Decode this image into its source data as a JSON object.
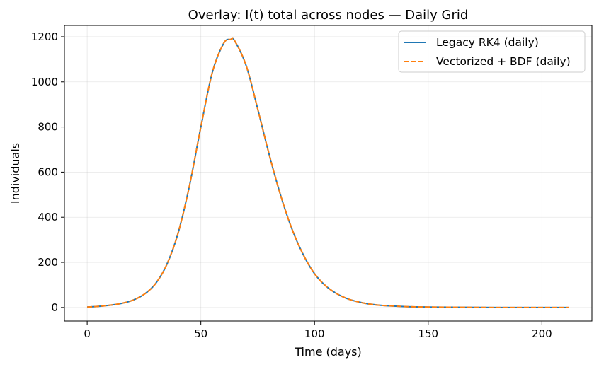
{
  "chart_data": {
    "type": "line",
    "title": "Overlay: I(t) total across nodes — Daily Grid",
    "xlabel": "Time (days)",
    "ylabel": "Individuals",
    "xlim": [
      -10,
      222
    ],
    "ylim": [
      -60,
      1250
    ],
    "xticks": [
      0,
      50,
      100,
      150,
      200
    ],
    "yticks": [
      0,
      200,
      400,
      600,
      800,
      1000,
      1200
    ],
    "grid": true,
    "legend_position": "top-right",
    "series": [
      {
        "name": "Legacy RK4 (daily)",
        "color": "#1f77b4",
        "style": "solid",
        "x": [
          0,
          5,
          10,
          15,
          20,
          25,
          30,
          35,
          40,
          45,
          50,
          55,
          60,
          63,
          65,
          70,
          75,
          80,
          85,
          90,
          95,
          100,
          105,
          110,
          115,
          120,
          125,
          130,
          140,
          150,
          160,
          180,
          200,
          212
        ],
        "y": [
          2,
          5,
          10,
          18,
          32,
          58,
          105,
          190,
          330,
          540,
          800,
          1040,
          1170,
          1188,
          1180,
          1070,
          880,
          680,
          500,
          350,
          235,
          150,
          95,
          60,
          37,
          23,
          14,
          9,
          4,
          2,
          1,
          0,
          0,
          0
        ]
      },
      {
        "name": "Vectorized + BDF (daily)",
        "color": "#ff7f0e",
        "style": "dashed",
        "x": [
          0,
          5,
          10,
          15,
          20,
          25,
          30,
          35,
          40,
          45,
          50,
          55,
          60,
          63,
          65,
          70,
          75,
          80,
          85,
          90,
          95,
          100,
          105,
          110,
          115,
          120,
          125,
          130,
          140,
          150,
          160,
          180,
          200,
          212
        ],
        "y": [
          2,
          5,
          10,
          18,
          32,
          58,
          105,
          190,
          330,
          540,
          800,
          1040,
          1170,
          1188,
          1180,
          1070,
          880,
          680,
          500,
          350,
          235,
          150,
          95,
          60,
          37,
          23,
          14,
          9,
          4,
          2,
          1,
          0,
          0,
          0
        ]
      }
    ]
  }
}
